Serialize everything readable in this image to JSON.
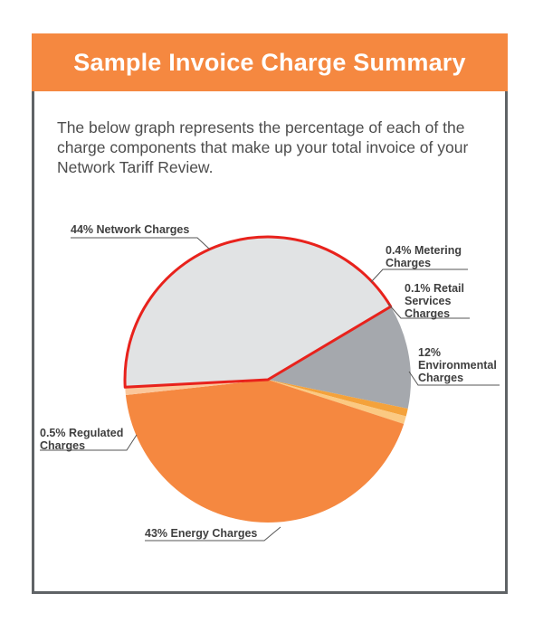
{
  "header": {
    "title": "Sample Invoice Charge Summary"
  },
  "intro": {
    "text": "The below graph represents the percentage of each of the charge components that make up your total invoice of your Network Tariff Review."
  },
  "colors": {
    "banner": "#f58840",
    "border": "#5f6366",
    "highlight": "#e8221c"
  },
  "chart_data": {
    "type": "pie",
    "highlighted": "Energy Charges",
    "slices": [
      {
        "name": "Energy Charges",
        "value": 43,
        "color": "#e1e3e4",
        "label_lines": [
          "43% Energy Charges"
        ]
      },
      {
        "name": "Environmental Charges",
        "value": 12,
        "color": "#a5a8ad",
        "label_lines": [
          "12%",
          "Environmental",
          "Charges"
        ]
      },
      {
        "name": "Retail Services Charges",
        "value": 0.1,
        "color": "#f4a23b",
        "label_lines": [
          "0.1% Retail",
          "Services",
          "Charges"
        ]
      },
      {
        "name": "Metering Charges",
        "value": 0.4,
        "color": "#fbc982",
        "label_lines": [
          "0.4% Metering",
          "Charges"
        ]
      },
      {
        "name": "Network Charges",
        "value": 44,
        "color": "#f58840",
        "label_lines": [
          "44% Network Charges"
        ]
      },
      {
        "name": "Regulated Charges",
        "value": 0.5,
        "color": "#fbc79b",
        "label_lines": [
          "0.5% Regulated",
          "Charges"
        ]
      }
    ]
  }
}
